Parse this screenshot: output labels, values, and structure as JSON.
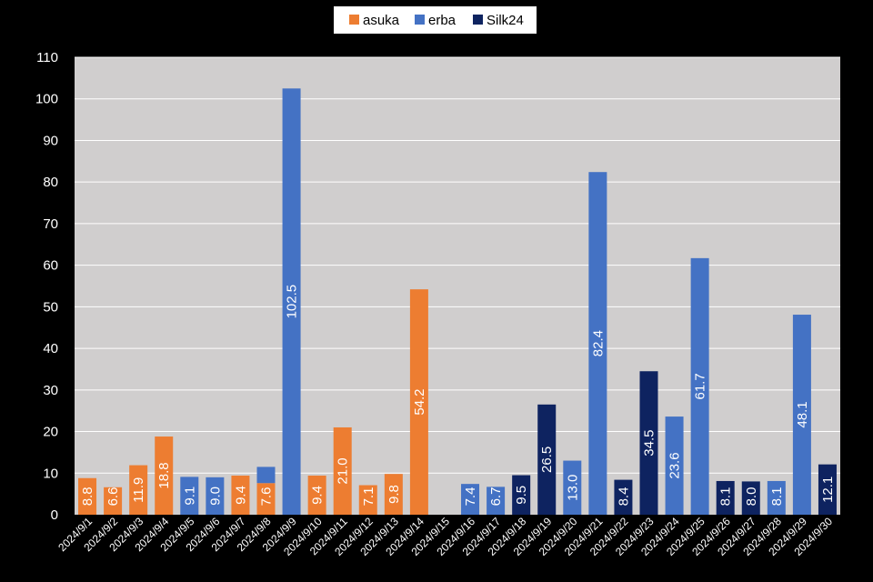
{
  "chart_data": {
    "type": "bar",
    "categories": [
      "2024/9/1",
      "2024/9/2",
      "2024/9/3",
      "2024/9/4",
      "2024/9/5",
      "2024/9/6",
      "2024/9/7",
      "2024/9/8",
      "2024/9/9",
      "2024/9/10",
      "2024/9/11",
      "2024/9/12",
      "2024/9/13",
      "2024/9/14",
      "2024/9/15",
      "2024/9/16",
      "2024/9/17",
      "2024/9/18",
      "2024/9/19",
      "2024/9/20",
      "2024/9/21",
      "2024/9/22",
      "2024/9/23",
      "2024/9/24",
      "2024/9/25",
      "2024/9/26",
      "2024/9/27",
      "2024/9/28",
      "2024/9/29",
      "2024/9/30"
    ],
    "stacked": true,
    "series": [
      {
        "name": "asuka",
        "color": "#ED7D31",
        "values": [
          8.8,
          6.6,
          11.9,
          18.8,
          null,
          null,
          9.4,
          7.6,
          null,
          9.4,
          21.0,
          7.1,
          9.8,
          54.2,
          null,
          null,
          null,
          null,
          null,
          null,
          null,
          null,
          null,
          null,
          null,
          null,
          null,
          null,
          null,
          null
        ]
      },
      {
        "name": "erba",
        "color": "#4472C4",
        "values": [
          null,
          null,
          null,
          null,
          9.1,
          9.0,
          null,
          3.9,
          102.5,
          null,
          null,
          null,
          null,
          null,
          null,
          7.4,
          6.7,
          null,
          null,
          13.0,
          82.4,
          null,
          null,
          23.6,
          61.7,
          null,
          null,
          8.1,
          48.1,
          null
        ]
      },
      {
        "name": "Silk24",
        "color": "#0E2360",
        "values": [
          null,
          null,
          null,
          null,
          null,
          null,
          null,
          null,
          null,
          null,
          null,
          null,
          null,
          null,
          null,
          null,
          null,
          9.5,
          26.5,
          null,
          null,
          8.4,
          34.5,
          null,
          null,
          8.1,
          8.0,
          null,
          null,
          12.1
        ]
      }
    ],
    "data_labels_series": [
      {
        "name": "asuka",
        "labels": [
          "8.8",
          "6.6",
          "11.9",
          "18.8",
          null,
          null,
          "9.4",
          "7.6",
          null,
          "9.4",
          "21.0",
          "7.1",
          "9.8",
          "54.2",
          null,
          null,
          null,
          null,
          null,
          null,
          null,
          null,
          null,
          null,
          null,
          null,
          null,
          null,
          null,
          null
        ]
      },
      {
        "name": "erba",
        "labels": [
          null,
          null,
          null,
          null,
          "9.1",
          "9.0",
          null,
          null,
          "102.5",
          null,
          null,
          null,
          null,
          null,
          null,
          "7.4",
          "6.7",
          null,
          null,
          "13.0",
          "82.4",
          null,
          null,
          "23.6",
          "61.7",
          null,
          null,
          "8.1",
          "48.1",
          null
        ]
      },
      {
        "name": "Silk24",
        "labels": [
          null,
          null,
          null,
          null,
          null,
          null,
          null,
          null,
          null,
          null,
          null,
          null,
          null,
          null,
          null,
          null,
          null,
          "9.5",
          "26.5",
          null,
          null,
          "8.4",
          "34.5",
          null,
          null,
          "8.1",
          "8.0",
          null,
          null,
          "12.1"
        ]
      }
    ],
    "yticks": [
      "0",
      "10",
      "20",
      "30",
      "40",
      "50",
      "60",
      "70",
      "80",
      "90",
      "100",
      "110"
    ],
    "ylim": [
      0,
      110
    ],
    "grid": true,
    "legend_position": "top-center",
    "background": "#000000",
    "plot_background": "#D0CECE",
    "gridline_color": "#FFFFFF"
  }
}
